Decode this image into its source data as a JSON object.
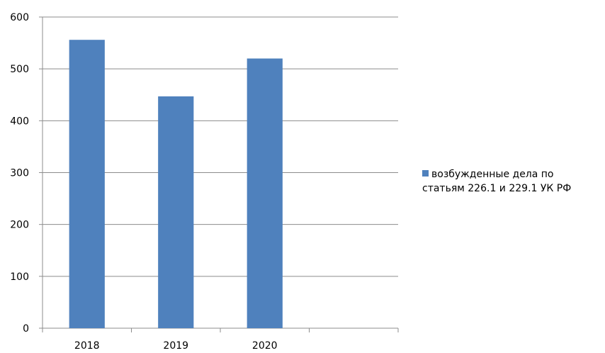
{
  "chart_data": {
    "type": "bar",
    "categories": [
      "2018",
      "2019",
      "2020",
      ""
    ],
    "series": [
      {
        "name": "возбужденные дела по статьям 226.1 и 229.1  УК РФ",
        "values": [
          556,
          447,
          520,
          null
        ],
        "color": "#4F81BD"
      }
    ],
    "y_ticks": [
      "0",
      "100",
      "200",
      "300",
      "400",
      "500",
      "600"
    ],
    "ylim": [
      0,
      600
    ],
    "grid": true,
    "legend_position": "right"
  },
  "legend": {
    "line1": "возбужденные дела по",
    "line2": "статьям 226.1 и 229.1  УК РФ"
  }
}
